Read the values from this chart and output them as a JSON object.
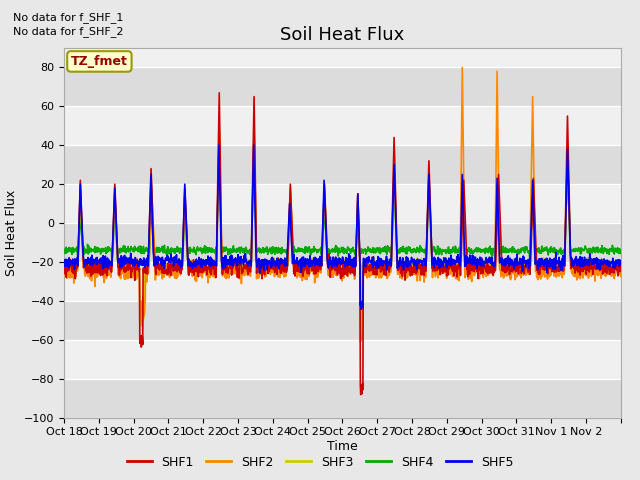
{
  "title": "Soil Heat Flux",
  "ylabel": "Soil Heat Flux",
  "xlabel": "Time",
  "ylim": [
    -100,
    90
  ],
  "yticks": [
    -100,
    -80,
    -60,
    -40,
    -20,
    0,
    20,
    40,
    60,
    80
  ],
  "xtick_labels": [
    "Oct 18",
    "Oct 19",
    "Oct 20",
    "Oct 21",
    "Oct 22",
    "Oct 23",
    "Oct 24",
    "Oct 25",
    "Oct 26",
    "Oct 27",
    "Oct 28",
    "Oct 29",
    "Oct 30",
    "Oct 31",
    "Nov 1",
    "Nov 2"
  ],
  "annotations": [
    "No data for f_SHF_1",
    "No data for f_SHF_2"
  ],
  "tz_label": "TZ_fmet",
  "series_colors": {
    "SHF1": "#cc0000",
    "SHF2": "#ff8800",
    "SHF3": "#cccc00",
    "SHF4": "#00aa00",
    "SHF5": "#0000ee"
  },
  "legend_colors": [
    "#cc0000",
    "#ff8800",
    "#cccc00",
    "#00aa00",
    "#0000ee"
  ],
  "legend_labels": [
    "SHF1",
    "SHF2",
    "SHF3",
    "SHF4",
    "SHF5"
  ],
  "background_color": "#e8e8e8",
  "plot_bg_light": "#f0f0f0",
  "plot_bg_dark": "#dcdcdc",
  "grid_color": "#ffffff",
  "title_fontsize": 13,
  "label_fontsize": 9
}
